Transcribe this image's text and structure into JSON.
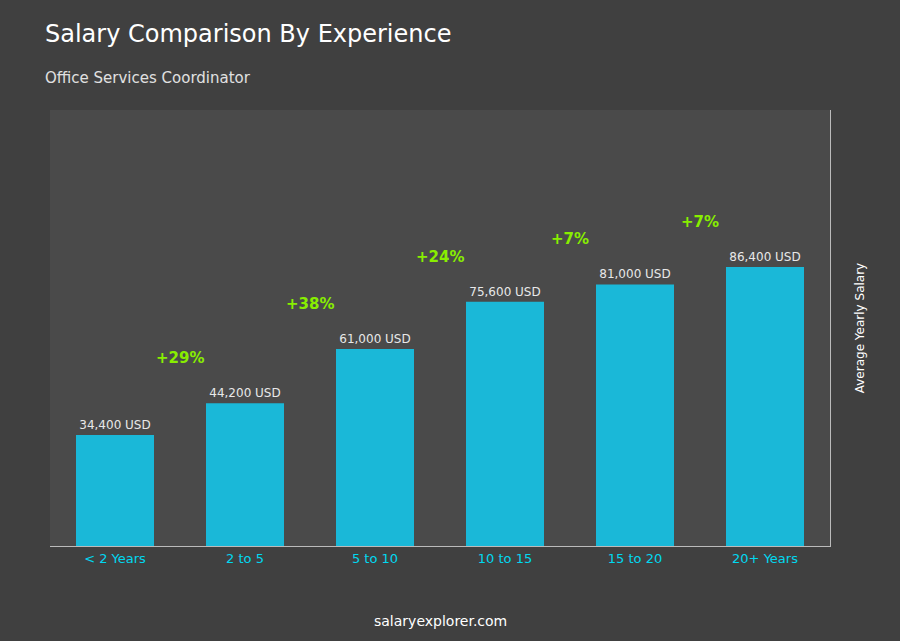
{
  "chart_data": {
    "type": "bar",
    "title": "Salary Comparison By Experience",
    "subtitle": "Office Services Coordinator",
    "categories": [
      "< 2 Years",
      "2 to 5",
      "5 to 10",
      "10 to 15",
      "15 to 20",
      "20+ Years"
    ],
    "values": [
      34400,
      44200,
      61000,
      75600,
      81000,
      86400
    ],
    "value_labels": [
      "34,400 USD",
      "44,200 USD",
      "61,000 USD",
      "75,600 USD",
      "81,000 USD",
      "86,400 USD"
    ],
    "data_labels": true,
    "color": "#1ab8d8",
    "ylabel": "Average Yearly Salary",
    "ylim": [
      0,
      135000
    ],
    "annotations": [
      "+29%",
      "+38%",
      "+24%",
      "+7%",
      "+7%"
    ],
    "footer": "salaryexplorer.com",
    "grid": false,
    "tick_labels": "x"
  }
}
